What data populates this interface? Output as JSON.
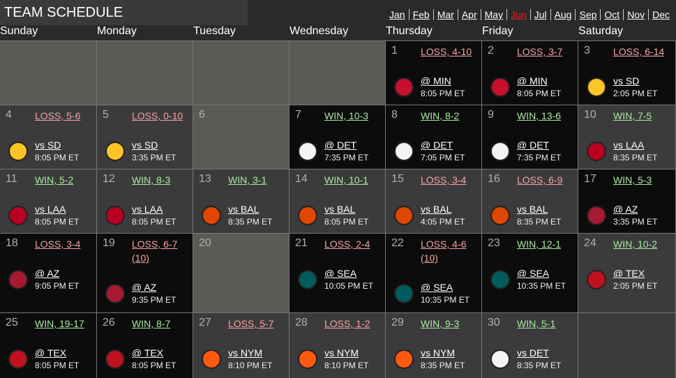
{
  "header": {
    "title": "TEAM SCHEDULE",
    "months": [
      "Jan",
      "Feb",
      "Mar",
      "Apr",
      "May",
      "Jun",
      "Jul",
      "Aug",
      "Sep",
      "Oct",
      "Nov",
      "Dec"
    ],
    "active_month": 5,
    "active_color": "#e0231c"
  },
  "weekdays": [
    "Sunday",
    "Monday",
    "Tuesday",
    "Wednesday",
    "Thursday",
    "Friday",
    "Saturday"
  ],
  "weeks": [
    [
      null,
      null,
      null,
      null,
      {
        "day": 1,
        "result": "LOSS, 4-10",
        "result_color": "#f4a3a3",
        "opponent": "@ MIN",
        "time": "8:05 PM ET",
        "bg": "#0c0c0c",
        "logo": "#c8102e"
      },
      {
        "day": 2,
        "result": "LOSS, 3-7",
        "result_color": "#f4a3a3",
        "opponent": "@ MIN",
        "time": "8:05 PM ET",
        "bg": "#0c0c0c",
        "logo": "#c8102e"
      },
      {
        "day": 3,
        "result": "LOSS, 6-14",
        "result_color": "#f4a3a3",
        "opponent": "vs SD",
        "time": "2:05 PM ET",
        "bg": "#0c0c0c",
        "logo": "#ffc425"
      }
    ],
    [
      {
        "day": 4,
        "result": "LOSS, 5-6",
        "result_color": "#f4a3a3",
        "opponent": "vs SD",
        "time": "8:05 PM ET",
        "bg": "#3b3b3b",
        "logo": "#ffc425"
      },
      {
        "day": 5,
        "result": "LOSS, 0-10",
        "result_color": "#f4a3a3",
        "opponent": "vs SD",
        "time": "3:35 PM ET",
        "bg": "#3b3b3b",
        "logo": "#ffc425"
      },
      {
        "day": 6,
        "bg": "#5b5a56"
      },
      {
        "day": 7,
        "result": "WIN, 10-3",
        "result_color": "#a9eaa2",
        "opponent": "@ DET",
        "time": "7:35 PM ET",
        "bg": "#0c0c0c",
        "logo": "#f4f4f4"
      },
      {
        "day": 8,
        "result": "WIN, 8-2",
        "result_color": "#a9eaa2",
        "opponent": "@ DET",
        "time": "7:05 PM ET",
        "bg": "#0c0c0c",
        "logo": "#f4f4f4"
      },
      {
        "day": 9,
        "result": "WIN, 13-6",
        "result_color": "#a9eaa2",
        "opponent": "@ DET",
        "time": "7:35 PM ET",
        "bg": "#0c0c0c",
        "logo": "#f4f4f4"
      },
      {
        "day": 10,
        "result": "WIN, 7-5",
        "result_color": "#a9eaa2",
        "opponent": "vs LAA",
        "time": "8:35 PM ET",
        "bg": "#3b3b3b",
        "logo": "#ba0021"
      }
    ],
    [
      {
        "day": 11,
        "result": "WIN, 5-2",
        "result_color": "#a9eaa2",
        "opponent": "vs LAA",
        "time": "8:05 PM ET",
        "bg": "#3b3b3b",
        "logo": "#ba0021"
      },
      {
        "day": 12,
        "result": "WIN, 8-3",
        "result_color": "#a9eaa2",
        "opponent": "vs LAA",
        "time": "8:05 PM ET",
        "bg": "#3b3b3b",
        "logo": "#ba0021"
      },
      {
        "day": 13,
        "result": "WIN, 3-1",
        "result_color": "#a9eaa2",
        "opponent": "vs BAL",
        "time": "8:35 PM ET",
        "bg": "#3b3b3b",
        "logo": "#df4601"
      },
      {
        "day": 14,
        "result": "WIN, 10-1",
        "result_color": "#a9eaa2",
        "opponent": "vs BAL",
        "time": "8:05 PM ET",
        "bg": "#3b3b3b",
        "logo": "#df4601"
      },
      {
        "day": 15,
        "result": "LOSS, 3-4",
        "result_color": "#f4a3a3",
        "opponent": "vs BAL",
        "time": "4:05 PM ET",
        "bg": "#3b3b3b",
        "logo": "#df4601"
      },
      {
        "day": 16,
        "result": "LOSS, 6-9",
        "result_color": "#f4a3a3",
        "opponent": "vs BAL",
        "time": "8:35 PM ET",
        "bg": "#3b3b3b",
        "logo": "#df4601"
      },
      {
        "day": 17,
        "result": "WIN, 5-3",
        "result_color": "#a9eaa2",
        "opponent": "@ AZ",
        "time": "3:35 PM ET",
        "bg": "#0c0c0c",
        "logo": "#a71930"
      }
    ],
    [
      {
        "day": 18,
        "result": "LOSS, 3-4",
        "result_color": "#f4a3a3",
        "opponent": "@ AZ",
        "time": "9:05 PM ET",
        "bg": "#0c0c0c",
        "logo": "#a71930"
      },
      {
        "day": 19,
        "result": "LOSS, 6-7 (10)",
        "result_color": "#f4a3a3",
        "opponent": "@ AZ",
        "time": "9:35 PM ET",
        "bg": "#0c0c0c",
        "logo": "#a71930"
      },
      {
        "day": 20,
        "bg": "#5b5a56"
      },
      {
        "day": 21,
        "result": "LOSS, 2-4",
        "result_color": "#f4a3a3",
        "opponent": "@ SEA",
        "time": "10:05 PM ET",
        "bg": "#0c0c0c",
        "logo": "#005c5c"
      },
      {
        "day": 22,
        "result": "LOSS, 4-6 (10)",
        "result_color": "#f4a3a3",
        "opponent": "@ SEA",
        "time": "10:35 PM ET",
        "bg": "#0c0c0c",
        "logo": "#005c5c"
      },
      {
        "day": 23,
        "result": "WIN, 12-1",
        "result_color": "#a9eaa2",
        "opponent": "@ SEA",
        "time": "10:35 PM ET",
        "bg": "#0c0c0c",
        "logo": "#005c5c"
      },
      {
        "day": 24,
        "result": "WIN, 10-2",
        "result_color": "#a9eaa2",
        "opponent": "@ TEX",
        "time": "2:05 PM ET",
        "bg": "#3b3b3b",
        "logo": "#c0111f"
      }
    ],
    [
      {
        "day": 25,
        "result": "WIN, 19-17",
        "result_color": "#a9eaa2",
        "opponent": "@ TEX",
        "time": "8:05 PM ET",
        "bg": "#0c0c0c",
        "logo": "#c0111f"
      },
      {
        "day": 26,
        "result": "WIN, 8-7",
        "result_color": "#a9eaa2",
        "opponent": "@ TEX",
        "time": "8:05 PM ET",
        "bg": "#0c0c0c",
        "logo": "#c0111f"
      },
      {
        "day": 27,
        "result": "LOSS, 5-7",
        "result_color": "#f4a3a3",
        "opponent": "vs NYM",
        "time": "8:10 PM ET",
        "bg": "#3b3b3b",
        "logo": "#ff5910"
      },
      {
        "day": 28,
        "result": "LOSS, 1-2",
        "result_color": "#f4a3a3",
        "opponent": "vs NYM",
        "time": "8:10 PM ET",
        "bg": "#3b3b3b",
        "logo": "#ff5910"
      },
      {
        "day": 29,
        "result": "WIN, 9-3",
        "result_color": "#a9eaa2",
        "opponent": "vs NYM",
        "time": "8:35 PM ET",
        "bg": "#3b3b3b",
        "logo": "#ff5910"
      },
      {
        "day": 30,
        "result": "WIN, 5-1",
        "result_color": "#a9eaa2",
        "opponent": "vs DET",
        "time": "8:35 PM ET",
        "bg": "#3b3b3b",
        "logo": "#f4f4f4"
      },
      null
    ]
  ]
}
